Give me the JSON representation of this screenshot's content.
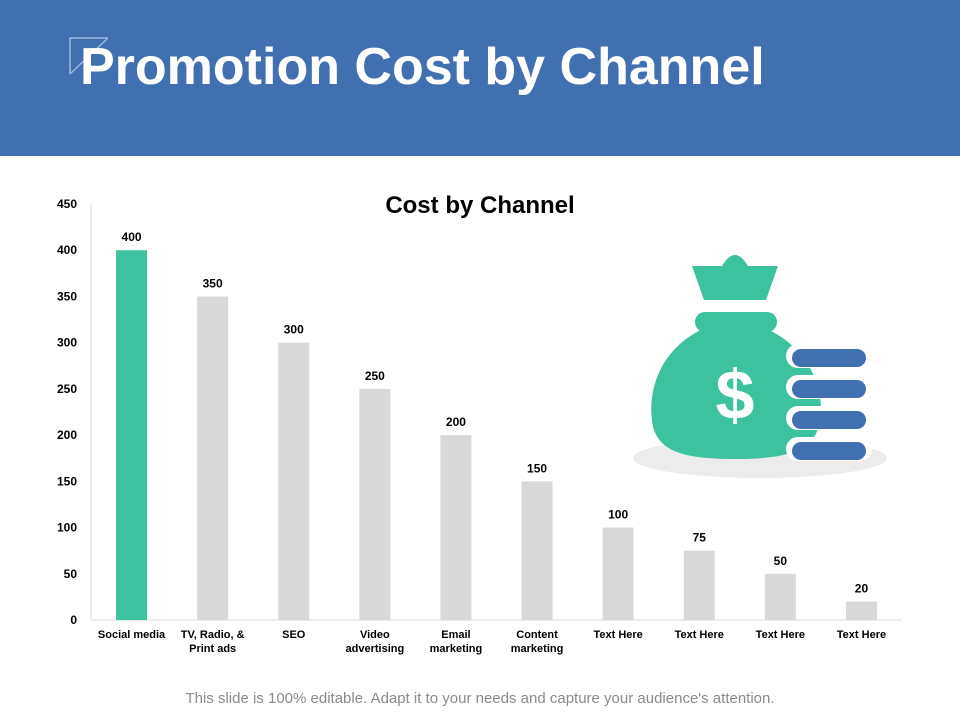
{
  "slide": {
    "title": "Promotion Cost by Channel",
    "footer": "This slide is 100% editable. Adapt it to your needs and capture your audience's attention."
  },
  "colors": {
    "header_bg": "#4170b0",
    "highlight_bar": "#3cc29e",
    "default_bar": "#d9d9d9",
    "coin_stack": "#4170b0",
    "money_bag": "#3cc29e"
  },
  "illustration": {
    "icon": "money-bag-with-coins-icon",
    "symbol": "$"
  },
  "chart_data": {
    "type": "bar",
    "title": "Cost by Channel",
    "xlabel": "",
    "ylabel": "",
    "ylim": [
      0,
      450
    ],
    "yticks": [
      0,
      50,
      100,
      150,
      200,
      250,
      300,
      350,
      400,
      450
    ],
    "grid": false,
    "legend": "none",
    "categories": [
      [
        "Social media"
      ],
      [
        "TV, Radio, &",
        "Print ads"
      ],
      [
        "SEO"
      ],
      [
        "Video",
        "advertising"
      ],
      [
        "Email",
        "marketing"
      ],
      [
        "Content",
        "marketing"
      ],
      [
        "Text Here"
      ],
      [
        "Text Here"
      ],
      [
        "Text Here"
      ],
      [
        "Text Here"
      ]
    ],
    "values": [
      400,
      350,
      300,
      250,
      200,
      150,
      100,
      75,
      50,
      20
    ],
    "highlight_index": 0
  }
}
